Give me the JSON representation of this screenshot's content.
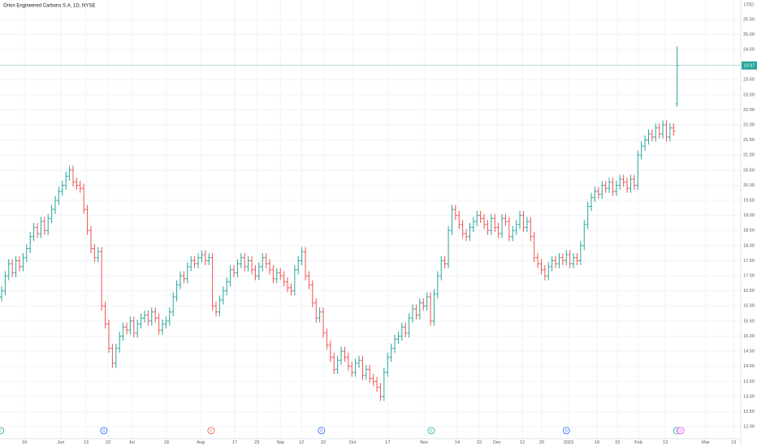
{
  "chart_data": {
    "type": "ohlc",
    "title": "Orion Engineered Carbons S.A, 1D, NYSE",
    "currency": "USD",
    "up_color": "#26a69a",
    "down_color": "#ef5350",
    "grid": true,
    "ylim": [
      11.6,
      26.14
    ],
    "xlim": [
      -0.45,
      206.8
    ],
    "yticks": [
      {
        "value": 12,
        "label": "12.00"
      },
      {
        "value": 12.5,
        "label": "12.50"
      },
      {
        "value": 13,
        "label": "13.00"
      },
      {
        "value": 13.5,
        "label": "13.50"
      },
      {
        "value": 14,
        "label": "14.00"
      },
      {
        "value": 14.5,
        "label": "14.50"
      },
      {
        "value": 15,
        "label": "15.00"
      },
      {
        "value": 15.5,
        "label": "15.50"
      },
      {
        "value": 16,
        "label": "16.00"
      },
      {
        "value": 16.5,
        "label": "16.50"
      },
      {
        "value": 17,
        "label": "17.00"
      },
      {
        "value": 17.5,
        "label": "17.50"
      },
      {
        "value": 18,
        "label": "18.00"
      },
      {
        "value": 18.5,
        "label": "18.50"
      },
      {
        "value": 19,
        "label": "19.00"
      },
      {
        "value": 19.5,
        "label": "19.50"
      },
      {
        "value": 20,
        "label": "20.00"
      },
      {
        "value": 20.5,
        "label": "20.50"
      },
      {
        "value": 21,
        "label": "21.00"
      },
      {
        "value": 21.5,
        "label": "21.50"
      },
      {
        "value": 22,
        "label": "22.00"
      },
      {
        "value": 22.5,
        "label": "22.50"
      },
      {
        "value": 23,
        "label": "23.00"
      },
      {
        "value": 23.5,
        "label": "23.50"
      },
      {
        "value": 24.5,
        "label": "24.50"
      },
      {
        "value": 25,
        "label": "25.00"
      },
      {
        "value": 25.5,
        "label": "25.50"
      }
    ],
    "xticks": [
      {
        "value": 6.4,
        "label": "10"
      },
      {
        "value": 16.6,
        "label": "Jun"
      },
      {
        "value": 23.6,
        "label": "13"
      },
      {
        "value": 29.8,
        "label": "22"
      },
      {
        "value": 36.4,
        "label": "Jul"
      },
      {
        "value": 46.1,
        "label": "18"
      },
      {
        "value": 55.7,
        "label": "Aug"
      },
      {
        "value": 65.2,
        "label": "17"
      },
      {
        "value": 71.4,
        "label": "23"
      },
      {
        "value": 78,
        "label": "Sep"
      },
      {
        "value": 83.9,
        "label": "12"
      },
      {
        "value": 90,
        "label": "22"
      },
      {
        "value": 98.2,
        "label": "Oct"
      },
      {
        "value": 108,
        "label": "17"
      },
      {
        "value": 118.2,
        "label": "Nov"
      },
      {
        "value": 127.5,
        "label": "14"
      },
      {
        "value": 133.6,
        "label": "22"
      },
      {
        "value": 138.6,
        "label": "Dec"
      },
      {
        "value": 145.7,
        "label": "12"
      },
      {
        "value": 151.1,
        "label": "20"
      },
      {
        "value": 158.6,
        "label": "2023"
      },
      {
        "value": 166.6,
        "label": "16"
      },
      {
        "value": 172.3,
        "label": "23"
      },
      {
        "value": 178.2,
        "label": "Feb"
      },
      {
        "value": 185.7,
        "label": "13"
      },
      {
        "value": 197,
        "label": "Mar"
      },
      {
        "value": 204.8,
        "label": "13"
      }
    ],
    "events": [
      {
        "x": -0.3,
        "label": "E",
        "color": "#26a69a"
      },
      {
        "x": 28.6,
        "label": "D",
        "color": "#2962ff"
      },
      {
        "x": 58.6,
        "label": "E",
        "color": "#ef5350"
      },
      {
        "x": 89.5,
        "label": "D",
        "color": "#2962ff"
      },
      {
        "x": 120.2,
        "label": "E",
        "color": "#26a69a"
      },
      {
        "x": 158,
        "label": "D",
        "color": "#2962ff"
      },
      {
        "x": 188.9,
        "label": "E",
        "color": "#26a69a"
      },
      {
        "x": 190,
        "label": "D",
        "color": "#e040fb"
      }
    ],
    "ohlc": [
      [
        16.3,
        16.65,
        16.15,
        16.5
      ],
      [
        16.5,
        17.15,
        16.35,
        17.0
      ],
      [
        17.0,
        17.55,
        16.85,
        17.4
      ],
      [
        17.4,
        17.55,
        16.95,
        17.1
      ],
      [
        17.1,
        17.65,
        16.95,
        17.5
      ],
      [
        17.5,
        17.65,
        17.15,
        17.3
      ],
      [
        17.3,
        17.75,
        17.15,
        17.6
      ],
      [
        17.6,
        18.05,
        17.45,
        17.9
      ],
      [
        17.9,
        18.45,
        17.75,
        18.3
      ],
      [
        18.3,
        18.75,
        18.15,
        18.6
      ],
      [
        18.6,
        18.75,
        18.25,
        18.4
      ],
      [
        18.4,
        18.95,
        18.25,
        18.8
      ],
      [
        18.8,
        18.95,
        18.35,
        18.5
      ],
      [
        18.5,
        19.05,
        18.35,
        18.9
      ],
      [
        18.9,
        19.35,
        18.75,
        19.2
      ],
      [
        19.2,
        19.65,
        19.05,
        19.5
      ],
      [
        19.5,
        19.95,
        19.35,
        19.8
      ],
      [
        19.8,
        20.15,
        19.65,
        20.0
      ],
      [
        20.0,
        20.45,
        19.85,
        20.3
      ],
      [
        20.3,
        20.65,
        20.15,
        20.5
      ],
      [
        20.5,
        20.65,
        19.95,
        20.1
      ],
      [
        20.1,
        20.25,
        19.85,
        20.0
      ],
      [
        20.0,
        20.15,
        19.75,
        19.9
      ],
      [
        19.9,
        20.05,
        19.05,
        19.2
      ],
      [
        19.2,
        19.35,
        18.35,
        18.5
      ],
      [
        18.5,
        18.65,
        17.75,
        17.9
      ],
      [
        17.9,
        18.05,
        17.45,
        17.6
      ],
      [
        17.6,
        17.95,
        17.45,
        17.8
      ],
      [
        17.8,
        17.95,
        15.85,
        16.0
      ],
      [
        16.0,
        16.15,
        15.25,
        15.4
      ],
      [
        15.4,
        15.55,
        14.45,
        14.6
      ],
      [
        14.6,
        14.75,
        13.95,
        14.1
      ],
      [
        14.1,
        14.75,
        13.95,
        14.6
      ],
      [
        14.6,
        15.15,
        14.45,
        15.0
      ],
      [
        15.0,
        15.45,
        14.85,
        15.3
      ],
      [
        15.3,
        15.45,
        15.05,
        15.2
      ],
      [
        15.2,
        15.65,
        15.05,
        15.5
      ],
      [
        15.5,
        15.65,
        14.95,
        15.1
      ],
      [
        15.1,
        15.55,
        14.95,
        15.4
      ],
      [
        15.4,
        15.75,
        15.25,
        15.6
      ],
      [
        15.6,
        15.85,
        15.45,
        15.7
      ],
      [
        15.7,
        15.85,
        15.35,
        15.5
      ],
      [
        15.5,
        15.95,
        15.35,
        15.8
      ],
      [
        15.8,
        15.95,
        15.45,
        15.6
      ],
      [
        15.6,
        15.75,
        15.05,
        15.2
      ],
      [
        15.2,
        15.55,
        15.05,
        15.4
      ],
      [
        15.4,
        15.65,
        15.25,
        15.5
      ],
      [
        15.5,
        15.95,
        15.35,
        15.8
      ],
      [
        15.8,
        16.45,
        15.65,
        16.3
      ],
      [
        16.3,
        16.85,
        16.15,
        16.7
      ],
      [
        16.7,
        17.15,
        16.55,
        17.0
      ],
      [
        17.0,
        17.15,
        16.75,
        16.9
      ],
      [
        16.9,
        17.45,
        16.75,
        17.3
      ],
      [
        17.3,
        17.65,
        17.15,
        17.5
      ],
      [
        17.5,
        17.65,
        17.25,
        17.4
      ],
      [
        17.4,
        17.75,
        17.25,
        17.6
      ],
      [
        17.6,
        17.85,
        17.45,
        17.7
      ],
      [
        17.7,
        17.85,
        17.35,
        17.5
      ],
      [
        17.5,
        17.75,
        17.35,
        17.6
      ],
      [
        17.6,
        17.75,
        15.85,
        16.0
      ],
      [
        16.0,
        16.15,
        15.65,
        15.8
      ],
      [
        15.8,
        16.35,
        15.65,
        16.2
      ],
      [
        16.2,
        16.65,
        16.05,
        16.5
      ],
      [
        16.5,
        16.95,
        16.35,
        16.8
      ],
      [
        16.8,
        17.35,
        16.65,
        17.2
      ],
      [
        17.2,
        17.35,
        16.95,
        17.1
      ],
      [
        17.1,
        17.55,
        16.95,
        17.4
      ],
      [
        17.4,
        17.75,
        17.25,
        17.6
      ],
      [
        17.6,
        17.75,
        17.15,
        17.3
      ],
      [
        17.3,
        17.65,
        17.15,
        17.5
      ],
      [
        17.5,
        17.65,
        17.05,
        17.2
      ],
      [
        17.2,
        17.35,
        16.85,
        17.0
      ],
      [
        17.0,
        17.45,
        16.85,
        17.3
      ],
      [
        17.3,
        17.75,
        17.15,
        17.6
      ],
      [
        17.6,
        17.75,
        17.25,
        17.4
      ],
      [
        17.4,
        17.55,
        17.05,
        17.2
      ],
      [
        17.2,
        17.35,
        16.75,
        16.9
      ],
      [
        16.9,
        17.25,
        16.75,
        17.1
      ],
      [
        17.1,
        17.25,
        16.85,
        17.0
      ],
      [
        17.0,
        17.15,
        16.65,
        16.8
      ],
      [
        16.8,
        16.95,
        16.45,
        16.6
      ],
      [
        16.6,
        16.75,
        16.35,
        16.5
      ],
      [
        16.5,
        17.35,
        16.35,
        17.2
      ],
      [
        17.2,
        17.65,
        17.05,
        17.5
      ],
      [
        17.5,
        17.95,
        17.35,
        17.8
      ],
      [
        17.8,
        17.95,
        16.85,
        17.0
      ],
      [
        17.0,
        17.15,
        16.55,
        16.7
      ],
      [
        16.7,
        16.85,
        15.95,
        16.1
      ],
      [
        16.1,
        16.25,
        15.45,
        15.6
      ],
      [
        15.6,
        15.95,
        15.45,
        15.8
      ],
      [
        15.8,
        15.95,
        14.95,
        15.1
      ],
      [
        15.1,
        15.25,
        14.55,
        14.7
      ],
      [
        14.7,
        14.85,
        14.15,
        14.3
      ],
      [
        14.3,
        14.45,
        13.75,
        13.9
      ],
      [
        13.9,
        14.35,
        13.75,
        14.2
      ],
      [
        14.2,
        14.65,
        14.05,
        14.5
      ],
      [
        14.5,
        14.65,
        14.15,
        14.3
      ],
      [
        14.3,
        14.45,
        13.85,
        14.0
      ],
      [
        14.0,
        14.15,
        13.65,
        13.8
      ],
      [
        13.8,
        14.25,
        13.65,
        14.1
      ],
      [
        14.1,
        14.35,
        13.95,
        14.2
      ],
      [
        14.2,
        14.35,
        13.55,
        13.7
      ],
      [
        13.7,
        14.05,
        13.55,
        13.9
      ],
      [
        13.9,
        14.05,
        13.45,
        13.6
      ],
      [
        13.6,
        13.75,
        13.35,
        13.5
      ],
      [
        13.5,
        13.65,
        13.15,
        13.3
      ],
      [
        13.3,
        13.45,
        12.85,
        13.0
      ],
      [
        13.0,
        13.95,
        12.85,
        13.8
      ],
      [
        13.8,
        14.45,
        13.65,
        14.3
      ],
      [
        14.3,
        14.75,
        14.15,
        14.6
      ],
      [
        14.6,
        15.05,
        14.45,
        14.9
      ],
      [
        14.9,
        15.15,
        14.75,
        15.0
      ],
      [
        15.0,
        15.45,
        14.85,
        15.3
      ],
      [
        15.3,
        15.45,
        14.95,
        15.1
      ],
      [
        15.1,
        15.75,
        14.95,
        15.6
      ],
      [
        15.6,
        16.05,
        15.45,
        15.9
      ],
      [
        15.9,
        16.05,
        15.55,
        15.7
      ],
      [
        15.7,
        16.25,
        15.55,
        16.1
      ],
      [
        16.1,
        16.25,
        15.85,
        16.0
      ],
      [
        16.0,
        16.45,
        15.85,
        16.3
      ],
      [
        16.3,
        16.45,
        15.35,
        15.5
      ],
      [
        15.5,
        16.55,
        15.35,
        16.4
      ],
      [
        16.4,
        17.15,
        16.25,
        17.0
      ],
      [
        17.0,
        17.65,
        16.85,
        17.5
      ],
      [
        17.5,
        17.65,
        17.25,
        17.4
      ],
      [
        17.4,
        18.65,
        17.25,
        18.5
      ],
      [
        18.5,
        19.35,
        18.35,
        19.2
      ],
      [
        19.2,
        19.35,
        18.85,
        19.0
      ],
      [
        19.0,
        19.15,
        18.55,
        18.7
      ],
      [
        18.7,
        18.85,
        18.25,
        18.4
      ],
      [
        18.4,
        18.55,
        18.15,
        18.3
      ],
      [
        18.3,
        18.75,
        18.15,
        18.6
      ],
      [
        18.6,
        18.95,
        18.45,
        18.8
      ],
      [
        18.8,
        19.15,
        18.65,
        19.0
      ],
      [
        19.0,
        19.15,
        18.75,
        18.9
      ],
      [
        18.9,
        19.05,
        18.55,
        18.7
      ],
      [
        18.7,
        18.85,
        18.35,
        18.5
      ],
      [
        18.5,
        19.05,
        18.35,
        18.9
      ],
      [
        18.9,
        19.05,
        18.45,
        18.6
      ],
      [
        18.6,
        18.75,
        18.25,
        18.4
      ],
      [
        18.4,
        19.05,
        18.25,
        18.9
      ],
      [
        18.9,
        19.05,
        18.65,
        18.8
      ],
      [
        18.8,
        18.95,
        18.15,
        18.3
      ],
      [
        18.3,
        18.65,
        18.15,
        18.5
      ],
      [
        18.5,
        18.85,
        18.35,
        18.7
      ],
      [
        18.7,
        19.15,
        18.55,
        19.0
      ],
      [
        19.0,
        19.15,
        18.45,
        18.6
      ],
      [
        18.6,
        18.95,
        18.45,
        18.8
      ],
      [
        18.8,
        18.95,
        18.15,
        18.3
      ],
      [
        18.3,
        18.45,
        17.45,
        17.6
      ],
      [
        17.6,
        17.75,
        17.25,
        17.4
      ],
      [
        17.4,
        17.55,
        17.05,
        17.2
      ],
      [
        17.2,
        17.35,
        16.85,
        17.0
      ],
      [
        17.0,
        17.45,
        16.85,
        17.3
      ],
      [
        17.3,
        17.65,
        17.15,
        17.5
      ],
      [
        17.5,
        17.65,
        17.25,
        17.4
      ],
      [
        17.4,
        17.75,
        17.25,
        17.6
      ],
      [
        17.6,
        17.75,
        17.35,
        17.5
      ],
      [
        17.5,
        17.85,
        17.35,
        17.7
      ],
      [
        17.7,
        17.85,
        17.25,
        17.4
      ],
      [
        17.4,
        17.75,
        17.25,
        17.6
      ],
      [
        17.6,
        17.75,
        17.35,
        17.5
      ],
      [
        17.5,
        18.15,
        17.35,
        18.0
      ],
      [
        18.0,
        18.85,
        17.85,
        18.7
      ],
      [
        18.7,
        19.45,
        18.55,
        19.3
      ],
      [
        19.3,
        19.75,
        19.15,
        19.6
      ],
      [
        19.6,
        19.95,
        19.45,
        19.8
      ],
      [
        19.8,
        19.95,
        19.55,
        19.7
      ],
      [
        19.7,
        20.15,
        19.55,
        20.0
      ],
      [
        20.0,
        20.15,
        19.75,
        19.9
      ],
      [
        19.9,
        20.25,
        19.75,
        20.1
      ],
      [
        20.1,
        20.25,
        19.65,
        19.8
      ],
      [
        19.8,
        20.15,
        19.65,
        20.0
      ],
      [
        20.0,
        20.35,
        19.85,
        20.2
      ],
      [
        20.2,
        20.35,
        19.95,
        20.1
      ],
      [
        20.1,
        20.25,
        19.75,
        19.9
      ],
      [
        19.9,
        20.35,
        19.75,
        20.2
      ],
      [
        20.2,
        20.35,
        19.85,
        20.0
      ],
      [
        20.0,
        21.15,
        19.85,
        21.0
      ],
      [
        21.0,
        21.45,
        20.85,
        21.3
      ],
      [
        21.3,
        21.65,
        21.15,
        21.5
      ],
      [
        21.5,
        21.85,
        21.35,
        21.7
      ],
      [
        21.7,
        21.85,
        21.45,
        21.6
      ],
      [
        21.6,
        22.05,
        21.45,
        21.9
      ],
      [
        21.9,
        22.05,
        21.55,
        21.7
      ],
      [
        21.7,
        22.15,
        21.55,
        22.0
      ],
      [
        22.0,
        22.15,
        21.45,
        21.6
      ],
      [
        21.6,
        22.05,
        21.45,
        21.9
      ],
      [
        21.9,
        22.05,
        21.65,
        21.8
      ],
      [
        22.7,
        24.6,
        22.6,
        23.97
      ]
    ]
  }
}
